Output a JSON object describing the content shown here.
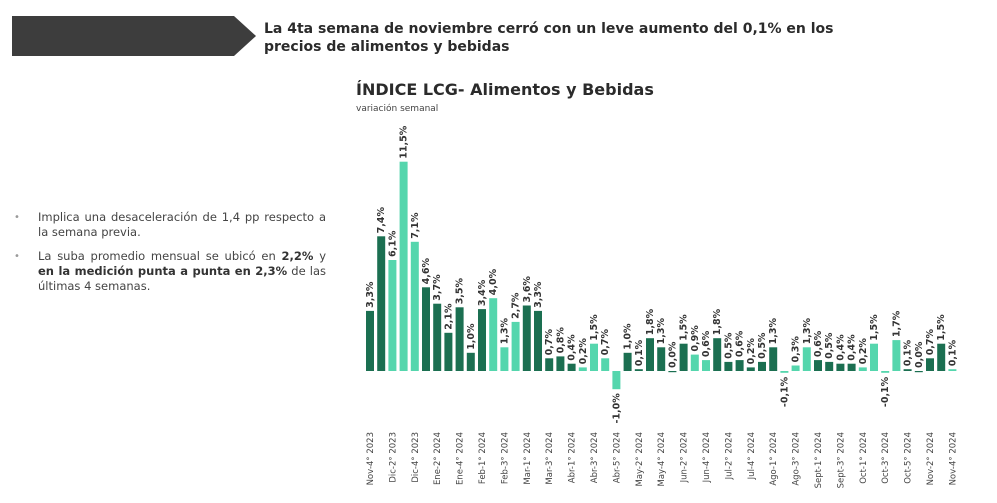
{
  "header": {
    "headline_line1": "La 4ta semana de noviembre cerró con un leve aumento del 0,1% en los",
    "headline_line2": "precios de alimentos y bebidas",
    "banner_color": "#3d3d3d"
  },
  "bullets": {
    "b1_text": "Implica una desaceleración de 1,4 pp respecto a la semana previa.",
    "b2_pre": "La suba promedio mensual se ubicó en ",
    "b2_bold1": "2,2%",
    "b2_mid": " y ",
    "b2_bold2": "en la medición punta a punta en 2,3%",
    "b2_post": " de las últimas 4 semanas."
  },
  "colors": {
    "dark": "#1b6f51",
    "light": "#55d6ad"
  },
  "chart_data": {
    "type": "bar",
    "title": "ÍNDICE LCG- Alimentos y Bebidas",
    "subtitle": "variación semanal",
    "ylim": [
      -1.0,
      11.5
    ],
    "values": [
      3.3,
      7.4,
      6.1,
      11.5,
      7.1,
      4.6,
      3.7,
      2.1,
      3.5,
      1.0,
      3.4,
      4.0,
      1.3,
      2.7,
      3.6,
      3.3,
      0.7,
      0.8,
      0.4,
      0.2,
      1.5,
      0.7,
      -1.0,
      1.0,
      0.1,
      1.8,
      1.3,
      0.0,
      1.5,
      0.9,
      0.6,
      1.8,
      0.5,
      0.6,
      0.2,
      0.5,
      1.3,
      -0.1,
      0.3,
      1.3,
      0.6,
      0.5,
      0.4,
      0.4,
      0.2,
      1.5,
      -0.1,
      1.7,
      0.1,
      0.0,
      0.7,
      1.5,
      0.1
    ],
    "labels": [
      "3,3%",
      "7,4%",
      "6,1%",
      "11,5%",
      "7,1%",
      "4,6%",
      "3,7%",
      "2,1%",
      "3,5%",
      "1,0%",
      "3,4%",
      "4,0%",
      "1,3%",
      "2,7%",
      "3,6%",
      "3,3%",
      "0,7%",
      "0,8%",
      "0,4%",
      "0,2%",
      "1,5%",
      "0,7%",
      "-1,0%",
      "1,0%",
      "0,1%",
      "1,8%",
      "1,3%",
      "0,0%",
      "1,5%",
      "0,9%",
      "0,6%",
      "1,8%",
      "0,5%",
      "0,6%",
      "0,2%",
      "0,5%",
      "1,3%",
      "-0,1%",
      "0,3%",
      "1,3%",
      "0,6%",
      "0,5%",
      "0,4%",
      "0,4%",
      "0,2%",
      "1,5%",
      "-0,1%",
      "1,7%",
      "0,1%",
      "0,0%",
      "0,7%",
      "1,5%",
      "0,1%"
    ],
    "shades": [
      "dark",
      "dark",
      "light",
      "light",
      "light",
      "dark",
      "dark",
      "dark",
      "dark",
      "dark",
      "dark",
      "light",
      "light",
      "light",
      "dark",
      "dark",
      "dark",
      "dark",
      "dark",
      "light",
      "light",
      "light",
      "light",
      "dark",
      "dark",
      "dark",
      "dark",
      "dark",
      "dark",
      "light",
      "light",
      "dark",
      "dark",
      "dark",
      "dark",
      "dark",
      "dark",
      "light",
      "light",
      "light",
      "dark",
      "dark",
      "dark",
      "dark",
      "light",
      "light",
      "light",
      "light",
      "dark",
      "dark",
      "dark",
      "dark",
      "light"
    ],
    "x_ticks": [
      "Nov-4° 2023",
      "Dic-2° 2023",
      "Dic-4° 2023",
      "Ene-2° 2024",
      "Ene-4° 2024",
      "Feb-1° 2024",
      "Feb-3° 2024",
      "Mar-1° 2024",
      "Mar-3° 2024",
      "Abr-1° 2024",
      "Abr-3° 2024",
      "Abr-5° 2024",
      "May-2° 2024",
      "May-4° 2024",
      "Jun-2° 2024",
      "Jun-4° 2024",
      "Jul-2° 2024",
      "Jul-4° 2024",
      "Ago-1° 2024",
      "Ago-3° 2024",
      "Sept-1° 2024",
      "Sept-3° 2024",
      "Oct-1° 2024",
      "Oct-3° 2024",
      "Oct-5° 2024",
      "Nov-2° 2024",
      "Nov-4° 2024"
    ],
    "x_tick_bar_index": [
      0,
      2,
      4,
      6,
      8,
      10,
      12,
      14,
      16,
      18,
      20,
      22,
      24,
      26,
      28,
      30,
      32,
      34,
      36,
      38,
      40,
      42,
      44,
      46,
      48,
      50,
      52
    ]
  }
}
